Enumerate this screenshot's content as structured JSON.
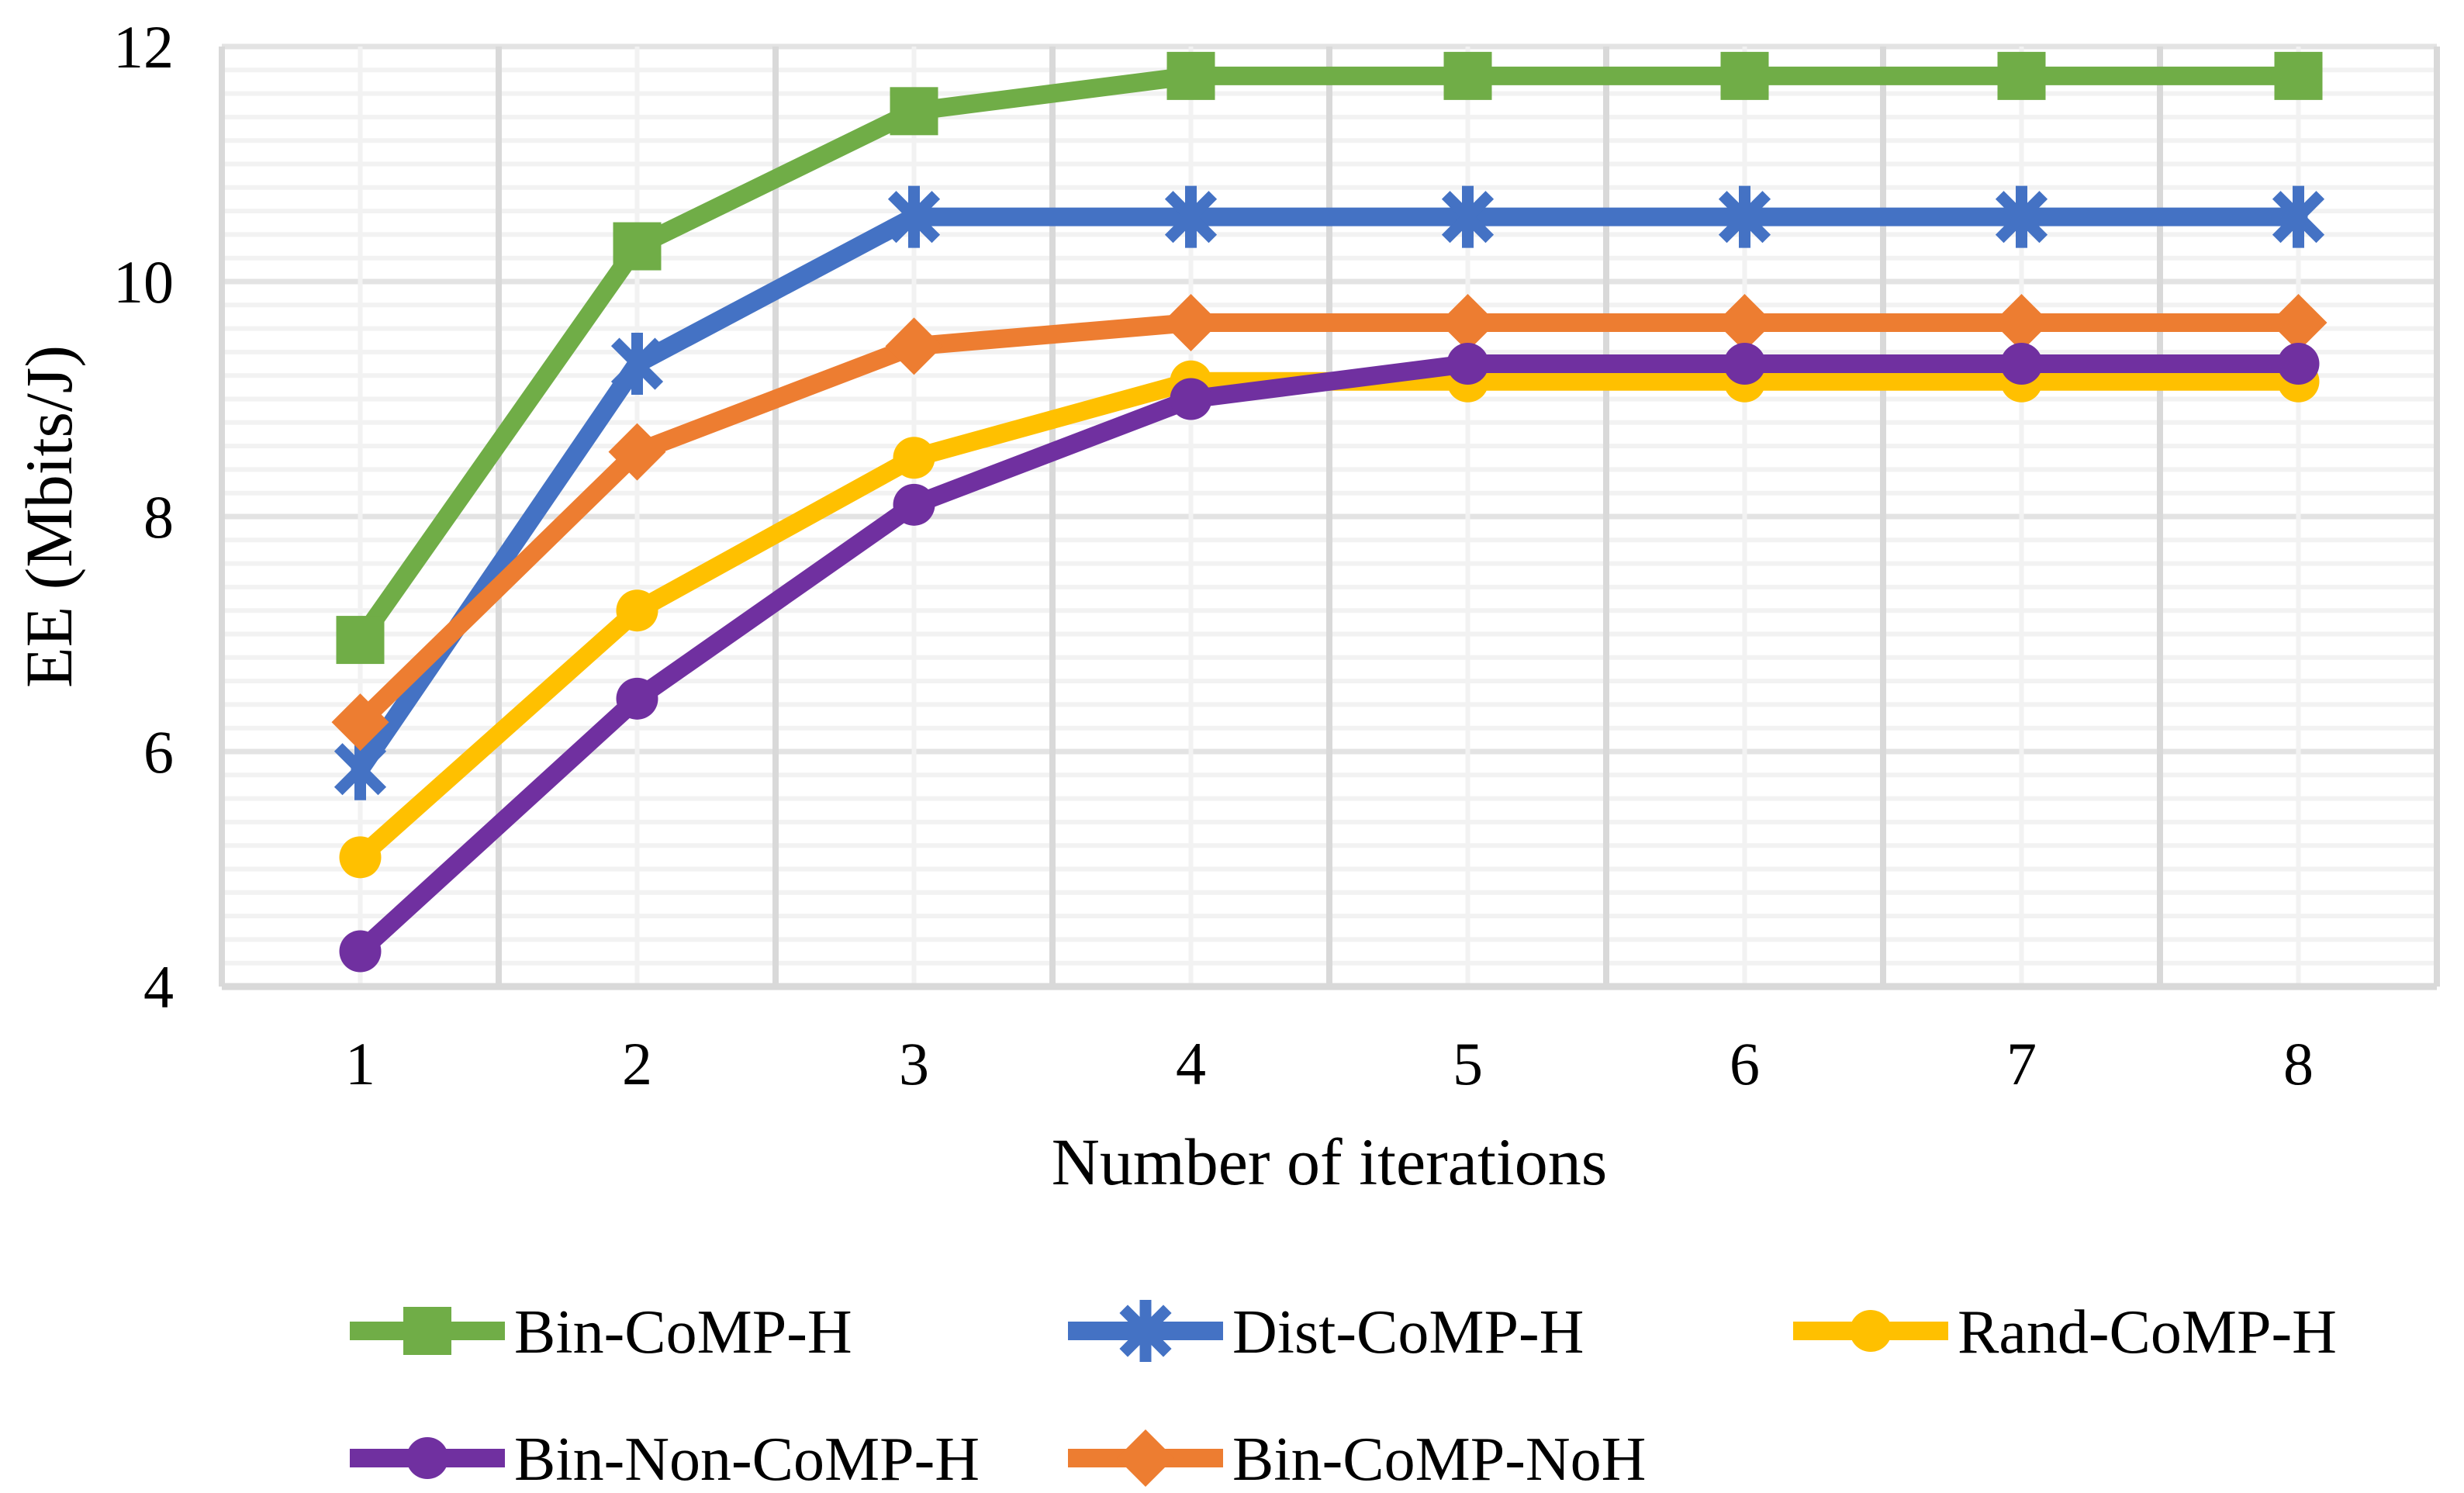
{
  "chart_data": {
    "type": "line",
    "title": "",
    "xlabel": "Number of iterations",
    "ylabel": "EE (Mbits/J)",
    "x": [
      1,
      2,
      3,
      4,
      5,
      6,
      7,
      8
    ],
    "x_tick_labels": [
      "1",
      "2",
      "3",
      "4",
      "5",
      "6",
      "7",
      "8"
    ],
    "ylim": [
      4,
      12
    ],
    "yticks": [
      4,
      6,
      8,
      10,
      12
    ],
    "ytick_labels": [
      "4",
      "6",
      "8",
      "10",
      "12"
    ],
    "y_minor_step": 0.2,
    "grid": "major+minor",
    "legend_position": "bottom",
    "grid_colors": {
      "minor": "#F2F2F2",
      "major": "#E3E3E3",
      "boundary": "#D9D9D9"
    },
    "text_color": "#000000",
    "background": "#FFFFFF",
    "series": [
      {
        "name": "Bin-CoMP-H",
        "color": "#70AD47",
        "marker": "square",
        "values": [
          6.95,
          10.3,
          11.45,
          11.75,
          11.75,
          11.75,
          11.75,
          11.75
        ]
      },
      {
        "name": "Dist-CoMP-H",
        "color": "#4472C4",
        "marker": "asterisk",
        "values": [
          5.85,
          9.3,
          10.55,
          10.55,
          10.55,
          10.55,
          10.55,
          10.55
        ]
      },
      {
        "name": "Rand-CoMP-H",
        "color": "#FFC000",
        "marker": "circle",
        "values": [
          5.1,
          7.2,
          8.5,
          9.15,
          9.15,
          9.15,
          9.15,
          9.15
        ]
      },
      {
        "name": "Bin-CoMP-NoH",
        "color": "#ED7D31",
        "marker": "diamond",
        "values": [
          6.25,
          8.55,
          9.45,
          9.65,
          9.65,
          9.65,
          9.65,
          9.65
        ]
      },
      {
        "name": "Bin-Non-CoMP-H",
        "color": "#7030A0",
        "marker": "circle",
        "values": [
          4.3,
          6.45,
          8.1,
          9.0,
          9.3,
          9.3,
          9.3,
          9.3
        ]
      }
    ],
    "legend_rows": [
      [
        "Bin-CoMP-H",
        "Dist-CoMP-H",
        "Rand-CoMP-H"
      ],
      [
        "Bin-Non-CoMP-H",
        "Bin-CoMP-NoH"
      ]
    ]
  }
}
